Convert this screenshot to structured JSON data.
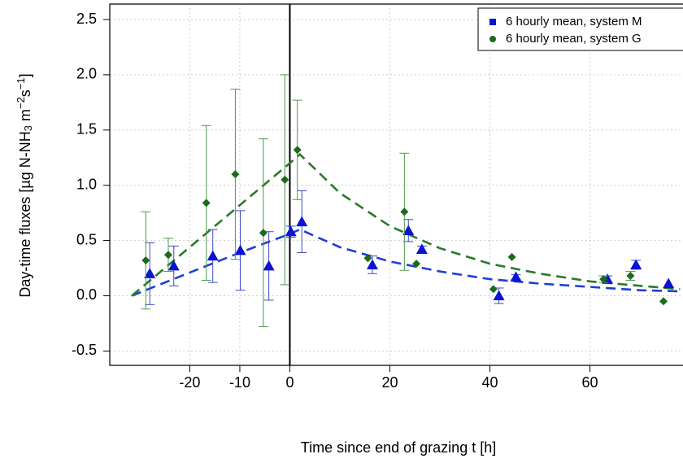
{
  "chart_data": {
    "type": "scatter",
    "x_label": "Time since end of grazing t [h]",
    "y_label_parts": [
      "Day-time fluxes [µg N-NH",
      "3",
      " m",
      "−2",
      "s",
      "−1",
      "]"
    ],
    "xlim": [
      -36,
      78.6
    ],
    "ylim": [
      -0.63,
      2.64
    ],
    "xticks": [
      -20,
      -10,
      0,
      20,
      40,
      60
    ],
    "yticks": [
      {
        "value": -0.5,
        "label": "-0.5"
      },
      {
        "value": 0,
        "label": "0.0"
      },
      {
        "value": 0.5,
        "label": "0.5"
      },
      {
        "value": 1,
        "label": "1.0"
      },
      {
        "value": 1.5,
        "label": "1.5"
      },
      {
        "value": 2,
        "label": "2.0"
      },
      {
        "value": 2.5,
        "label": "2.5"
      }
    ],
    "grid": true,
    "vline": 0,
    "legend": "top-right",
    "series": [
      {
        "name": "6 hourly mean, system M",
        "color": "#0a14d2",
        "error_color": "#3a4ac8",
        "marker": "triangle",
        "legend_marker": "square",
        "x": [
          -28.0,
          -23.2,
          -15.4,
          -9.9,
          -4.2,
          0.2,
          2.4,
          16.5,
          23.7,
          26.4,
          41.8,
          45.2,
          63.5,
          69.2,
          75.7
        ],
        "values": [
          0.2,
          0.27,
          0.36,
          0.41,
          0.27,
          0.58,
          0.67,
          0.28,
          0.59,
          0.42,
          0.0,
          0.17,
          0.15,
          0.28,
          0.11
        ],
        "errors": [
          0.28,
          0.18,
          0.24,
          0.36,
          0.31,
          0.05,
          0.28,
          0.08,
          0.1,
          0.03,
          0.07,
          0.02,
          0.03,
          0.04,
          0
        ]
      },
      {
        "name": "6 hourly mean, system G",
        "color": "#1b6b1b",
        "error_color": "#4d9a4d",
        "marker": "diamond",
        "legend_marker": "circle",
        "x": [
          -28.8,
          -24.3,
          -16.7,
          -10.9,
          -5.3,
          -1.0,
          1.5,
          15.6,
          22.9,
          25.3,
          40.7,
          44.4,
          62.7,
          68.1,
          74.7
        ],
        "values": [
          0.32,
          0.37,
          0.84,
          1.1,
          0.57,
          1.05,
          1.32,
          0.34,
          0.76,
          0.29,
          0.06,
          0.35,
          0.15,
          0.18,
          -0.05
        ],
        "errors": [
          0.44,
          0.15,
          0.7,
          0.77,
          0.85,
          0.95,
          0.45,
          0,
          0.53,
          0,
          0,
          0,
          0.03,
          0.04,
          0
        ]
      }
    ],
    "curves": [
      {
        "color": "#1f3fd0",
        "x": [
          -31.6,
          -20,
          -10,
          0,
          2,
          10,
          20,
          30,
          40,
          50,
          60,
          70,
          78
        ],
        "values": [
          0,
          0.21,
          0.39,
          0.56,
          0.6,
          0.44,
          0.31,
          0.22,
          0.15,
          0.11,
          0.08,
          0.05,
          0.04
        ]
      },
      {
        "color": "#2a7a2a",
        "x": [
          -31.6,
          -20,
          -10,
          0,
          2,
          10,
          20,
          30,
          40,
          50,
          60,
          70,
          78
        ],
        "values": [
          0,
          0.44,
          0.82,
          1.2,
          1.28,
          0.93,
          0.63,
          0.43,
          0.29,
          0.2,
          0.13,
          0.09,
          0.06
        ]
      }
    ]
  }
}
